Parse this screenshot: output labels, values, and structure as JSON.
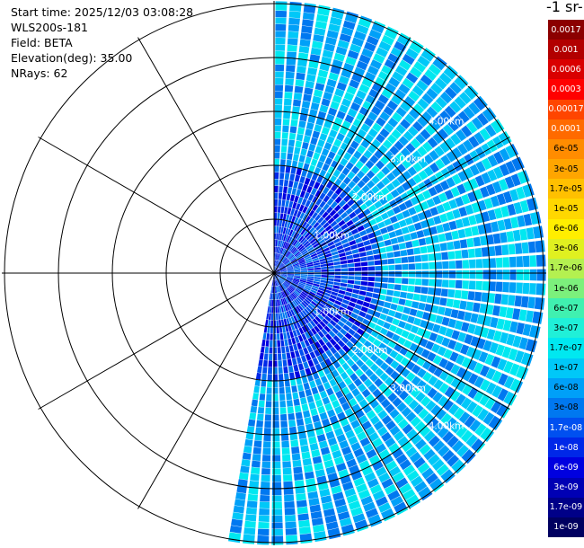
{
  "header": {
    "start_time": "Start time: 2025/12/03 03:08:28",
    "instrument": "WLS200s-181",
    "field": "Field: BETA",
    "elevation": "Elevation(deg): 35.00",
    "nrays": "NRays: 62"
  },
  "colorbar": {
    "title": "-1 sr-",
    "levels": [
      {
        "label": "0.0017",
        "color": "#8b0000",
        "text": "#ffffff"
      },
      {
        "label": "0.001",
        "color": "#b20000",
        "text": "#ffffff"
      },
      {
        "label": "0.0006",
        "color": "#d90000",
        "text": "#ffffff"
      },
      {
        "label": "0.0003",
        "color": "#ff0000",
        "text": "#ffffff"
      },
      {
        "label": "0.00017",
        "color": "#ff4500",
        "text": "#ffffff"
      },
      {
        "label": "0.0001",
        "color": "#ff6a00",
        "text": "#ffffff"
      },
      {
        "label": "6e-05",
        "color": "#ff8c00",
        "text": "#000000"
      },
      {
        "label": "3e-05",
        "color": "#ffa500",
        "text": "#000000"
      },
      {
        "label": "1.7e-05",
        "color": "#ffc000",
        "text": "#000000"
      },
      {
        "label": "1e-05",
        "color": "#ffd700",
        "text": "#000000"
      },
      {
        "label": "6e-06",
        "color": "#ffee00",
        "text": "#000000"
      },
      {
        "label": "3e-06",
        "color": "#e0f020",
        "text": "#000000"
      },
      {
        "label": "1.7e-06",
        "color": "#b4f050",
        "text": "#000000"
      },
      {
        "label": "1e-06",
        "color": "#7cf07c",
        "text": "#000000"
      },
      {
        "label": "6e-07",
        "color": "#40f0b0",
        "text": "#000000"
      },
      {
        "label": "3e-07",
        "color": "#20f0d8",
        "text": "#000000"
      },
      {
        "label": "1.7e-07",
        "color": "#00e8f0",
        "text": "#000000"
      },
      {
        "label": "1e-07",
        "color": "#00c8f8",
        "text": "#000000"
      },
      {
        "label": "6e-08",
        "color": "#00a0f8",
        "text": "#000000"
      },
      {
        "label": "3e-08",
        "color": "#0078f0",
        "text": "#000000"
      },
      {
        "label": "1.7e-08",
        "color": "#0050f0",
        "text": "#ffffff"
      },
      {
        "label": "1e-08",
        "color": "#0028e8",
        "text": "#ffffff"
      },
      {
        "label": "6e-09",
        "color": "#0000e0",
        "text": "#ffffff"
      },
      {
        "label": "3e-09",
        "color": "#0000b4",
        "text": "#ffffff"
      },
      {
        "label": "1.7e-09",
        "color": "#000088",
        "text": "#ffffff"
      },
      {
        "label": "1e-09",
        "color": "#000060",
        "text": "#ffffff"
      }
    ]
  },
  "range_rings": {
    "labels": [
      "1.00km",
      "2.00km",
      "3.00km",
      "4.00km",
      "5.00km"
    ]
  }
}
